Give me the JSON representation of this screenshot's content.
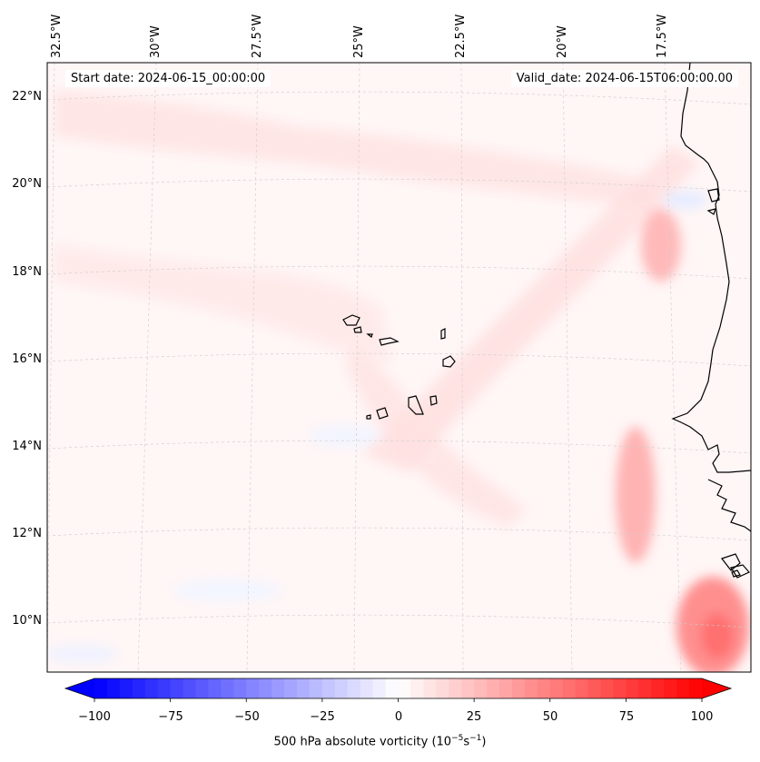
{
  "map": {
    "longitude_labels": [
      "32.5°W",
      "30°W",
      "27.5°W",
      "25°W",
      "22.5°W",
      "20°W",
      "17.5°W"
    ],
    "latitude_labels": [
      "22°N",
      "20°N",
      "18°N",
      "16°N",
      "14°N",
      "12°N",
      "10°N"
    ],
    "start_date_text": "Start date: 2024-06-15_00:00:00",
    "valid_date_text": "Valid_date: 2024-06-15T06:00:00.00",
    "gridlines": true,
    "coastline_color": "#000000"
  },
  "colorbar": {
    "tick_labels": [
      "−100",
      "−75",
      "−50",
      "−25",
      "0",
      "25",
      "50",
      "75",
      "100"
    ],
    "range": [
      -100,
      100
    ],
    "extend": "both",
    "colors": {
      "negative": "#0000ff",
      "zero": "#ffffff",
      "positive": "#ff0000"
    },
    "title_main": "500 hPa absolute vorticity (10",
    "title_exp1": "−5",
    "title_mid": "s",
    "title_exp2": "−1",
    "title_end": ")"
  }
}
